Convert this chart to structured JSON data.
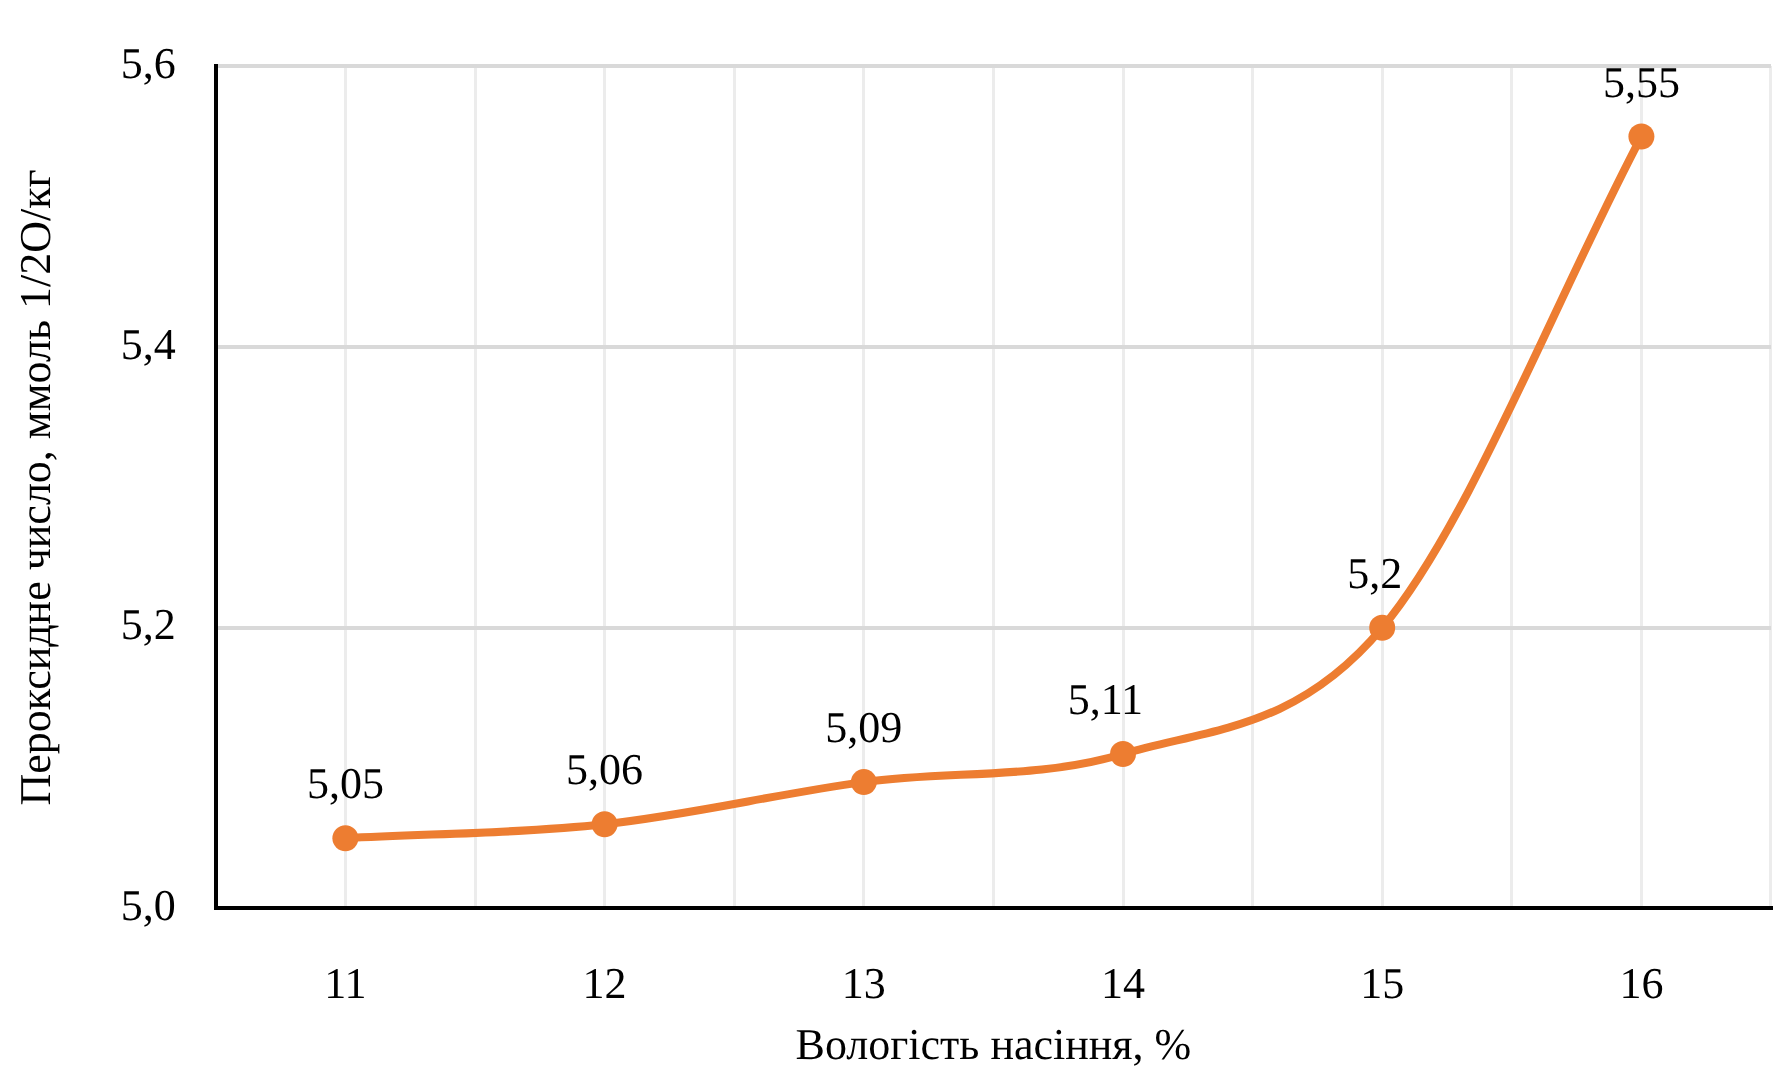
{
  "chart_data": {
    "type": "line",
    "xlabel": "Вологість насіння, %",
    "ylabel": "Пероксидне число, ммоль 1/2О/кг",
    "categories": [
      "11",
      "12",
      "13",
      "14",
      "15",
      "16"
    ],
    "values": [
      5.05,
      5.06,
      5.09,
      5.11,
      5.2,
      5.55
    ],
    "color": "#ed7d31",
    "value_labels": [
      "5,05",
      "5,06",
      "5,09",
      "5,11",
      "5,2",
      "5,55"
    ],
    "ylim": [
      5.0,
      5.6
    ],
    "yticks": [
      {
        "value": 5.0,
        "label": "5,0"
      },
      {
        "value": 5.2,
        "label": "5,2"
      },
      {
        "value": 5.4,
        "label": "5,4"
      },
      {
        "value": 5.6,
        "label": "5,6"
      }
    ],
    "grid": true,
    "marker": "circle",
    "line_style": "solid"
  }
}
